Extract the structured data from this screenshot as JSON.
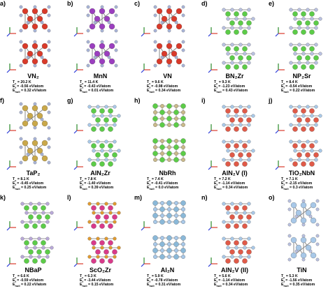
{
  "panels": [
    {
      "tag": "a)",
      "name": "VN₂",
      "tc": "20.2 K",
      "ef": "-0.56 eV/atom",
      "eh": "0.32 eV/atom"
    },
    {
      "tag": "b)",
      "name": "MnN",
      "tc": "11.4 K",
      "ef": "-0.43 eV/atom",
      "eh": "0.01 eV/atom"
    },
    {
      "tag": "c)",
      "name": "VN",
      "tc": "9.6 K",
      "ef": "-0.98 eV/atom",
      "eh": "0.34 eV/atom"
    },
    {
      "tag": "d)",
      "name": "BN₂Zr",
      "tc": "9.3 K",
      "ef": "-1.23 eV/atom",
      "eh": "0.43 eV/atom"
    },
    {
      "tag": "e)",
      "name": "NP₂Sr",
      "tc": "8.4 K",
      "ef": "-0.54 eV/atom",
      "eh": "0.22 eV/atom"
    },
    {
      "tag": "f)",
      "name": "TaP₂",
      "tc": "8.1 K",
      "ef": "-0.45 eV/atom",
      "eh": "0.25 eV/atom"
    },
    {
      "tag": "g)",
      "name": "AlN₂Zr",
      "tc": "7.8 K",
      "ef": "-1.40 eV/atom",
      "eh": "0.39 eV/atom"
    },
    {
      "tag": "h)",
      "name": "NbRh",
      "tc": "7.4 K",
      "ef": "-0.41 eV/atom",
      "eh": "0.0 eV/atom"
    },
    {
      "tag": "i)",
      "name": "AlN₂V (I)",
      "tc": "7.2 K",
      "ef": "-1.14 eV/atom",
      "eh": "0.34 eV/atom"
    },
    {
      "tag": "j)",
      "name": "TiO₂NbN",
      "tc": "7.1 K",
      "ef": "-2.15 eV/atom",
      "eh": "0.3 eV/atom"
    },
    {
      "tag": "k)",
      "name": "NBaP",
      "tc": "6.6 K",
      "ef": "-0.59 eV/atom",
      "eh": "0.22 eV/atom"
    },
    {
      "tag": "l)",
      "name": "ScO₂Zr",
      "tc": "6.3 K",
      "ef": "-3.44 eV/atom",
      "eh": "0.15 eV/atom"
    },
    {
      "tag": "m)",
      "name": "Al₂N",
      "tc": "5.9 K",
      "ef": "-0.78 eV/atom",
      "eh": "0.31 eV/atom"
    },
    {
      "tag": "n)",
      "name": "AlN₂V (II)",
      "tc": "5.6 K",
      "ef": "-1.14 eV/atom",
      "eh": "0.34 eV/atom"
    },
    {
      "tag": "o)",
      "name": "TiN",
      "tc": "5.3 K",
      "ef": "-1.56 eV/atom",
      "eh": "0.35 eV/atom"
    }
  ],
  "labels": {
    "tc": "T",
    "tc_sub": "c",
    "ef": "E",
    "ef_sub": "f",
    "eh": "E",
    "eh_sub": "hull",
    "eq": " = "
  },
  "structures": [
    {
      "pattern": "hex",
      "c1": "#d93a2a",
      "c2": "#a8b4d8",
      "axes": true
    },
    {
      "pattern": "hex",
      "c1": "#9b3fbf",
      "c2": "#a8b4d8",
      "axes": true
    },
    {
      "pattern": "hex",
      "c1": "#d93a2a",
      "c2": "#a8b4d8",
      "axes": true
    },
    {
      "pattern": "layer",
      "c1": "#5ccc48",
      "c2": "#b8c0e0",
      "axes": true
    },
    {
      "pattern": "layer",
      "c1": "#5ccc48",
      "c2": "#b8c0e0",
      "axes": true
    },
    {
      "pattern": "hex",
      "c1": "#c9a84a",
      "c2": "#a8b4d8",
      "axes": true
    },
    {
      "pattern": "layer",
      "c1": "#5ccc48",
      "c2": "#a8c8e8",
      "axes": true
    },
    {
      "pattern": "grid",
      "c1": "#5ccc48",
      "c2": "#c9b98a",
      "axes": false
    },
    {
      "pattern": "layer",
      "c1": "#e05a48",
      "c2": "#a8c8e8",
      "axes": true
    },
    {
      "pattern": "layer",
      "c1": "#e05a48",
      "c2": "#a8c8e8",
      "axes": true
    },
    {
      "pattern": "layer",
      "c1": "#5ccc48",
      "c2": "#b8a8d8",
      "axes": true
    },
    {
      "pattern": "layer",
      "c1": "#d93a8a",
      "c2": "#e09a30",
      "axes": true
    },
    {
      "pattern": "grid",
      "c1": "#8ab8d8",
      "c2": "#a8c8e8",
      "axes": true
    },
    {
      "pattern": "layer",
      "c1": "#e05a48",
      "c2": "#a8c8e8",
      "axes": true
    },
    {
      "pattern": "hex",
      "c1": "#a8c8e8",
      "c2": "#b8c0e0",
      "axes": false
    }
  ]
}
